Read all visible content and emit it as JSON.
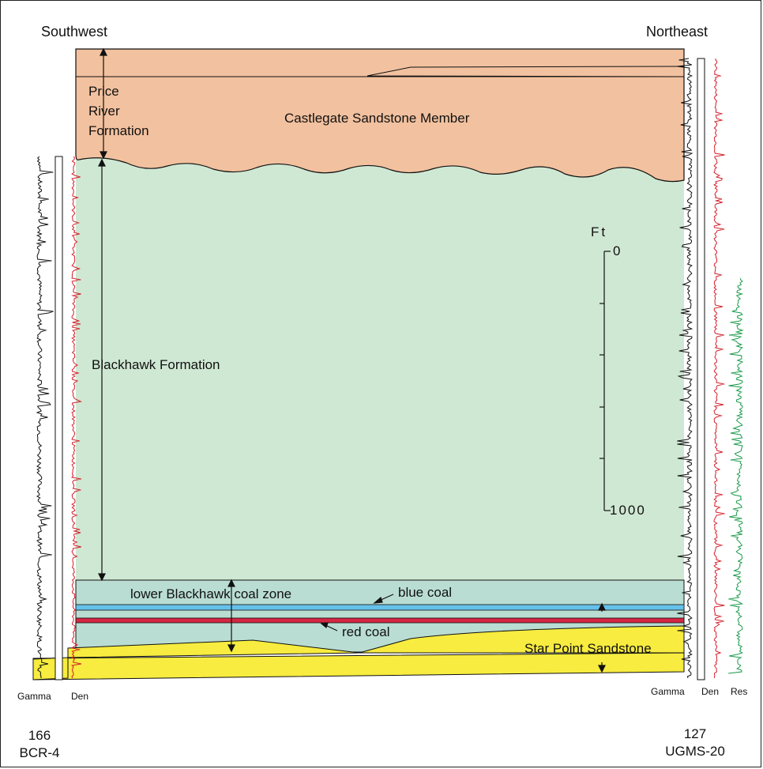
{
  "directions": {
    "left": "Southwest",
    "right": "Northeast"
  },
  "units": [
    {
      "name": "Price River Formation",
      "lines": [
        "Price",
        "River",
        "Formation"
      ],
      "member": "Castlegate Sandstone Member",
      "color": "#f2c19f"
    },
    {
      "name": "Blackhawk Formation",
      "color": "#cfe8d3"
    },
    {
      "name": "lower Blackhawk coal zone",
      "color": "#b9ddd2"
    },
    {
      "name": "Star Point Sandstone",
      "color": "#f7ec3f"
    }
  ],
  "coals": [
    {
      "name": "blue coal",
      "color": "#66c1ea"
    },
    {
      "name": "red coal",
      "color": "#d42743"
    }
  ],
  "scale": {
    "unit": "Ft",
    "top": "0",
    "bottom": "1000"
  },
  "wells": {
    "left": {
      "number": "166",
      "name": "BCR-4",
      "logs": [
        "Gamma",
        "Den"
      ]
    },
    "right": {
      "number": "127",
      "name": "UGMS-20",
      "logs": [
        "Gamma",
        "Den",
        "Res"
      ]
    }
  },
  "log_colors": {
    "gamma": "#111111",
    "density": "#d41f2a",
    "resistivity": "#1a9a4a"
  }
}
